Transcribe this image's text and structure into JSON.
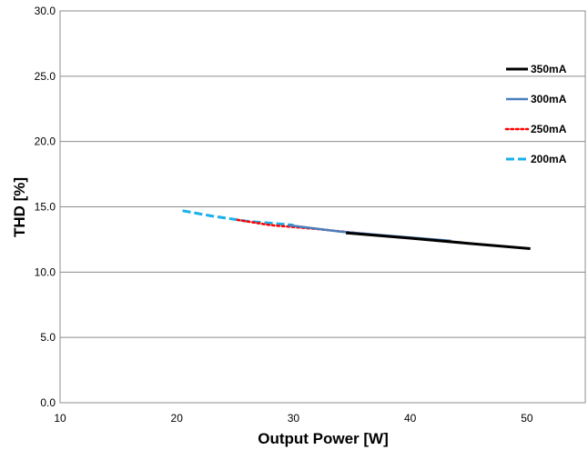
{
  "chart_data": {
    "type": "line",
    "title": "",
    "xlabel": "Output Power [W]",
    "ylabel": "THD [%]",
    "xlim": [
      10,
      55
    ],
    "ylim": [
      0,
      30
    ],
    "x_ticks": [
      "10",
      "20",
      "30",
      "40",
      "50"
    ],
    "y_ticks": [
      "0.0",
      "5.0",
      "10.0",
      "15.0",
      "20.0",
      "25.0",
      "30.0"
    ],
    "grid": "horizontal",
    "legend_position": "right",
    "series": [
      {
        "name": "350mA",
        "color": "#000000",
        "style": "solid",
        "width": 3,
        "x": [
          34.5,
          40,
          45,
          50.3
        ],
        "y": [
          13.0,
          12.6,
          12.2,
          11.8
        ]
      },
      {
        "name": "300mA",
        "color": "#4a7ebb",
        "style": "solid",
        "width": 2.5,
        "x": [
          29.5,
          34,
          38,
          43.5
        ],
        "y": [
          13.6,
          13.1,
          12.8,
          12.4
        ]
      },
      {
        "name": "250mA",
        "color": "#ff0000",
        "style": "dotted",
        "width": 2.5,
        "x": [
          25.2,
          28,
          32,
          36.5
        ],
        "y": [
          14.0,
          13.6,
          13.3,
          12.9
        ]
      },
      {
        "name": "200mA",
        "color": "#1ab0e8",
        "style": "dashed",
        "width": 3,
        "x": [
          20.5,
          23,
          26,
          30
        ],
        "y": [
          14.7,
          14.3,
          13.9,
          13.6
        ]
      }
    ]
  }
}
